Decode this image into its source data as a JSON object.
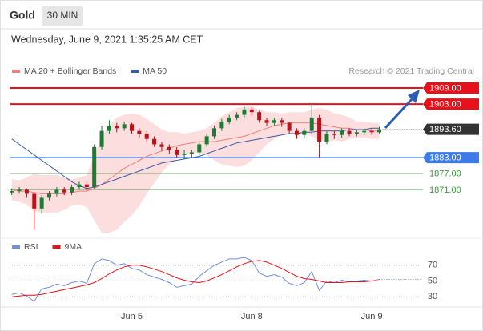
{
  "header": {
    "title": "Gold",
    "interval": "30 MIN",
    "timestamp": "Wednesday, June 9, 2021 1:35:25 AM CET"
  },
  "chart_data": [
    {
      "type": "candlestick",
      "credit": "Research © 2021 Trading Central",
      "up_color": "#1e7b34",
      "down_color": "#b8141b",
      "open": [
        1870,
        1870.5,
        1871,
        1869.5,
        1864,
        1868,
        1869.5,
        1871,
        1870,
        1872,
        1873,
        1872,
        1887,
        1893,
        1895,
        1894,
        1895.5,
        1893,
        1892,
        1890,
        1888,
        1887,
        1886,
        1884,
        1884.5,
        1885,
        1888,
        1891,
        1894,
        1896.5,
        1898,
        1899,
        1901,
        1900,
        1897,
        1896,
        1897,
        1896,
        1893,
        1891.5,
        1893,
        1898,
        1889,
        1892,
        1891.5,
        1893,
        1892,
        1892.5,
        1893,
        1892.5
      ],
      "high": [
        1871.5,
        1872,
        1871.5,
        1870,
        1869,
        1870.5,
        1872,
        1872,
        1873,
        1874,
        1874,
        1888,
        1895,
        1897,
        1896,
        1896.5,
        1896,
        1894,
        1893,
        1891,
        1889,
        1888,
        1887,
        1886,
        1886,
        1889,
        1892,
        1895,
        1897.5,
        1899,
        1900,
        1902,
        1902,
        1900.5,
        1898,
        1898,
        1898,
        1896.5,
        1894,
        1894,
        1903,
        1899,
        1893,
        1893,
        1894,
        1894,
        1893.5,
        1894,
        1894,
        1894.5
      ],
      "low": [
        1869,
        1869.5,
        1868,
        1856,
        1862,
        1867,
        1868.5,
        1869,
        1869,
        1871,
        1870.5,
        1871.5,
        1886,
        1892,
        1892.5,
        1893,
        1892,
        1890.5,
        1889,
        1887,
        1885.5,
        1884.5,
        1883,
        1882.5,
        1883,
        1884,
        1887,
        1890,
        1893,
        1895.5,
        1897,
        1898,
        1898.5,
        1896,
        1895,
        1895,
        1894.5,
        1892,
        1890,
        1890.5,
        1892,
        1883,
        1888,
        1890,
        1890.5,
        1891,
        1891,
        1891.5,
        1891.5,
        1892
      ],
      "close": [
        1870.5,
        1871,
        1869.5,
        1864,
        1868,
        1869.5,
        1871,
        1870,
        1872,
        1873,
        1872,
        1887,
        1893,
        1895,
        1894,
        1895.5,
        1893,
        1892,
        1890,
        1888,
        1887,
        1886,
        1884,
        1884.5,
        1885,
        1888,
        1891,
        1894,
        1896.5,
        1898,
        1899,
        1901,
        1900,
        1897,
        1896,
        1897,
        1896,
        1893,
        1891.5,
        1893,
        1898,
        1889,
        1892,
        1891.5,
        1893,
        1892,
        1892.5,
        1893,
        1892.5,
        1893.6
      ],
      "series": [
        {
          "name": "MA 20 + Bollinger Bands",
          "color": "#f08080",
          "band_color": "#fcdede",
          "values": [
            1871,
            1870.5,
            1870.5,
            1870,
            1869.5,
            1869.5,
            1869.5,
            1869.5,
            1870,
            1870.5,
            1870.5,
            1871.5,
            1873,
            1875,
            1877,
            1879,
            1880.5,
            1882,
            1883.5,
            1884.5,
            1885.5,
            1886.5,
            1887.5,
            1888,
            1888.5,
            1889,
            1889,
            1889,
            1889.5,
            1890,
            1890.5,
            1891,
            1892,
            1893,
            1894,
            1895,
            1895.5,
            1896,
            1896,
            1896,
            1896,
            1895.5,
            1895,
            1894.5,
            1894,
            1894,
            1893.5,
            1893.5,
            1893,
            1893
          ],
          "upper": [
            1875,
            1874.5,
            1875.5,
            1877,
            1876.5,
            1876.5,
            1876.5,
            1875.5,
            1875,
            1875.5,
            1876.5,
            1883.5,
            1891,
            1895,
            1898,
            1899,
            1899.5,
            1899,
            1897.5,
            1895.5,
            1893.5,
            1892.5,
            1892.5,
            1892,
            1892.5,
            1893,
            1894,
            1896,
            1898.5,
            1900,
            1901.5,
            1902,
            1902,
            1901,
            1900,
            1900,
            1899.5,
            1900,
            1900,
            1900,
            1901,
            1901.5,
            1901,
            1899.5,
            1899,
            1898,
            1896.5,
            1896.5,
            1896,
            1896
          ],
          "lower": [
            1867,
            1866.5,
            1865.5,
            1863,
            1862.5,
            1862.5,
            1862.5,
            1863.5,
            1865,
            1865.5,
            1864.5,
            1859.5,
            1855,
            1855,
            1856,
            1859,
            1861.5,
            1865,
            1869.5,
            1873.5,
            1877.5,
            1880.5,
            1882.5,
            1884,
            1884.5,
            1885,
            1884,
            1882,
            1880.5,
            1880,
            1879.5,
            1880,
            1882,
            1885,
            1888,
            1890,
            1891.5,
            1892,
            1892,
            1892,
            1891,
            1889.5,
            1889,
            1889.5,
            1889,
            1890,
            1890.5,
            1890.5,
            1890,
            1890
          ]
        },
        {
          "name": "MA 50",
          "color": "#3b5ba5",
          "values": [
            1890,
            1888,
            1886,
            1884,
            1882,
            1880,
            1878,
            1876,
            1874,
            1872.5,
            1871.5,
            1872,
            1873,
            1874,
            1875,
            1876,
            1877,
            1878,
            1879,
            1880,
            1881,
            1881.5,
            1882,
            1882.5,
            1883,
            1883.5,
            1884.5,
            1885.5,
            1886.5,
            1887.5,
            1888.5,
            1889,
            1889.5,
            1890,
            1890.5,
            1891,
            1891.5,
            1892,
            1892,
            1892.5,
            1892.5,
            1893,
            1893,
            1893,
            1893,
            1893.5,
            1893.5,
            1893.5,
            1894,
            1894
          ]
        }
      ],
      "levels": [
        {
          "value": 1909,
          "label": "1909.00",
          "color": "#e8101a",
          "style": "box"
        },
        {
          "value": 1903,
          "label": "1903.00",
          "color": "#e8101a",
          "style": "box"
        },
        {
          "value": 1883,
          "label": "1883.00",
          "color": "#3f7be8",
          "style": "box"
        },
        {
          "value": 1877,
          "label": "1877.00",
          "color": "#3a9a3a",
          "style": "text"
        },
        {
          "value": 1871,
          "label": "1871.00",
          "color": "#3a9a3a",
          "style": "text"
        }
      ],
      "last": {
        "value": 1893.6,
        "label": "1893.60",
        "color": "#333333"
      },
      "xlim": [
        -0.5,
        54.5
      ],
      "ylim": [
        1855,
        1912
      ]
    },
    {
      "type": "line",
      "series": [
        {
          "name": "RSI",
          "color": "#6f8fe0",
          "values": [
            33,
            35,
            31,
            24,
            40,
            42,
            46,
            44,
            48,
            50,
            47,
            72,
            78,
            76,
            70,
            72,
            66,
            64,
            58,
            55,
            52,
            48,
            42,
            44,
            46,
            56,
            63,
            70,
            74,
            78,
            78,
            80,
            76,
            60,
            56,
            58,
            55,
            47,
            44,
            48,
            62,
            38,
            50,
            48,
            51,
            49,
            50,
            51,
            50,
            52
          ]
        },
        {
          "name": "9MA",
          "color": "#e8101a",
          "values": [
            30,
            31,
            32,
            32,
            33,
            35,
            37,
            39,
            41,
            43,
            45,
            48,
            53,
            59,
            64,
            68,
            70,
            70,
            68,
            65,
            62,
            58,
            54,
            51,
            49,
            48,
            50,
            54,
            58,
            63,
            68,
            72,
            75,
            76,
            74,
            70,
            66,
            61,
            56,
            53,
            52,
            50,
            48,
            48,
            48,
            49,
            49,
            49,
            50,
            50
          ]
        }
      ],
      "xlim": [
        -0.5,
        54.5
      ],
      "ylim": [
        18,
        82
      ],
      "yticks": [
        30,
        50,
        70
      ],
      "xticks": [
        {
          "value": 16,
          "label": "Jun 5"
        },
        {
          "value": 32,
          "label": "Jun 8"
        },
        {
          "value": 48,
          "label": "Jun 9"
        }
      ]
    }
  ]
}
